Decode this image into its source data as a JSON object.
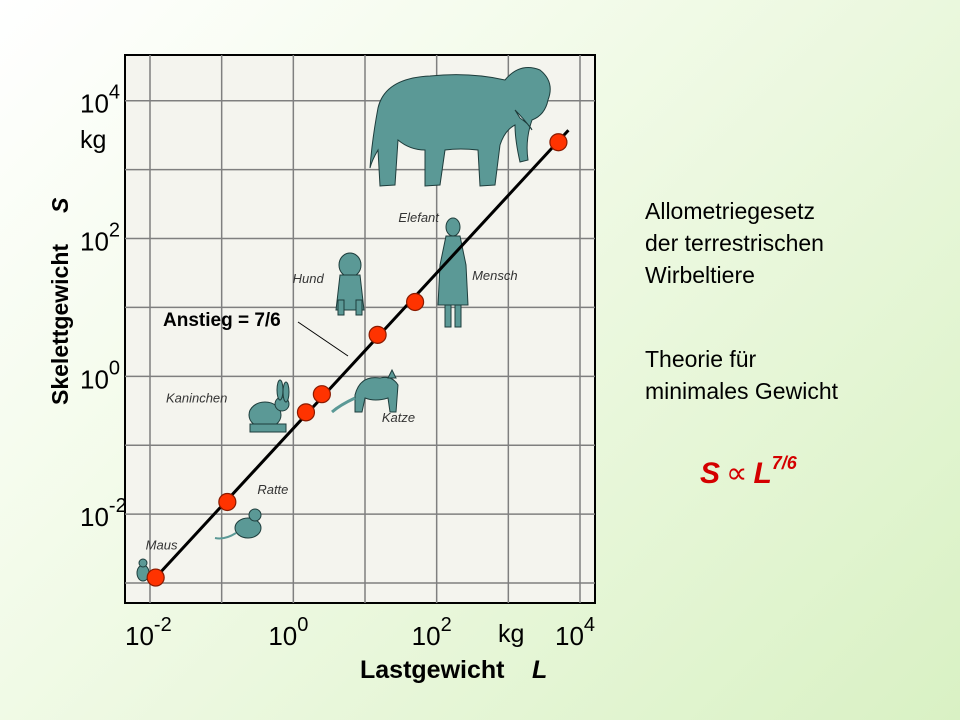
{
  "chart_data": {
    "type": "scatter",
    "title": "",
    "xlabel": "Lastgewicht",
    "xlabel_var": "L",
    "ylabel": "Skelettgewicht",
    "ylabel_var": "S",
    "x_unit": "kg",
    "y_unit": "kg",
    "log_x": true,
    "log_y": true,
    "xlim": [
      0.01,
      10000
    ],
    "ylim": [
      0.001,
      20000
    ],
    "grid": true,
    "x_ticks": [
      {
        "base": "10",
        "exp": "-2",
        "value": 0.01
      },
      {
        "base": "10",
        "exp": "0",
        "value": 1
      },
      {
        "base": "10",
        "exp": "2",
        "value": 100
      },
      {
        "base": "10",
        "exp": "4",
        "value": 10000
      }
    ],
    "y_ticks": [
      {
        "base": "10",
        "exp": "-2",
        "value": 0.01
      },
      {
        "base": "10",
        "exp": "0",
        "value": 1
      },
      {
        "base": "10",
        "exp": "2",
        "value": 100
      },
      {
        "base": "10",
        "exp": "4",
        "value": 10000
      }
    ],
    "points": [
      {
        "label": "Maus",
        "x": 0.012,
        "y": 0.0012
      },
      {
        "label": "Ratte",
        "x": 0.12,
        "y": 0.015
      },
      {
        "label": "Kaninchen",
        "x": 1.5,
        "y": 0.3
      },
      {
        "label": "Katze",
        "x": 2.5,
        "y": 0.55
      },
      {
        "label": "Hund",
        "x": 15,
        "y": 4
      },
      {
        "label": "Mensch",
        "x": 50,
        "y": 12
      },
      {
        "label": "Elefant",
        "x": 5000,
        "y": 2500
      }
    ],
    "fit_line": {
      "label": "Anstieg = 7/6",
      "slope": 1.1667,
      "x_range": [
        0.012,
        5000
      ]
    },
    "colors": {
      "point": "#ff3300",
      "animal": "#5b9996",
      "line": "#000000",
      "grid": "#7f7f7f"
    }
  },
  "legend_text": {
    "line1": "Allometriegesetz",
    "line2": "der terrestrischen",
    "line3": "Wirbeltiere",
    "line4": "Theorie für",
    "line5": "minimales Gewicht"
  },
  "equation": {
    "lhs": "S",
    "op": "∝",
    "rhs": "L",
    "exp": "7/6"
  }
}
